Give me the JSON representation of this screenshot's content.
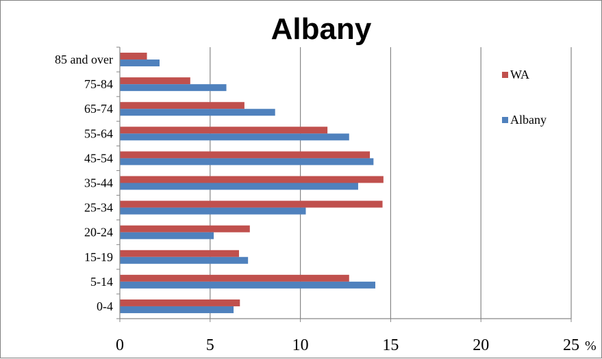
{
  "chart_data": {
    "type": "bar",
    "orientation": "horizontal",
    "title": "Albany",
    "unit": "%",
    "categories": [
      "0-4",
      "5-14",
      "15-19",
      "20-24",
      "25-34",
      "35-44",
      "45-54",
      "55-64",
      "65-74",
      "75-84",
      "85 and over"
    ],
    "series": [
      {
        "name": "WA",
        "color": "#c0504d",
        "values": [
          6.65,
          12.7,
          6.6,
          7.2,
          14.55,
          14.6,
          13.85,
          11.5,
          6.9,
          3.9,
          1.5
        ]
      },
      {
        "name": "Albany",
        "color": "#4f81bd",
        "values": [
          6.3,
          14.15,
          7.1,
          5.2,
          10.3,
          13.2,
          14.05,
          12.7,
          8.6,
          5.9,
          2.2
        ]
      }
    ],
    "xlim": [
      0,
      25
    ],
    "xticks": [
      "0",
      "5",
      "10",
      "15",
      "20",
      "25"
    ],
    "grid": "vertical major gridlines",
    "legend_position": "right"
  }
}
